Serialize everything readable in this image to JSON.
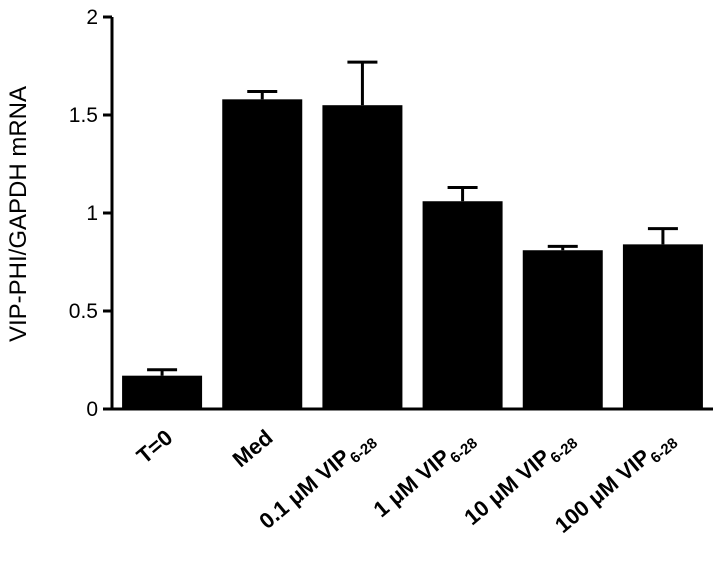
{
  "chart_data": {
    "type": "bar",
    "ylabel": "VIP-PHI/GAPDH mRNA",
    "ylim": [
      0,
      2
    ],
    "yticks": [
      {
        "value": 0,
        "label": "0"
      },
      {
        "value": 0.5,
        "label": "0.5"
      },
      {
        "value": 1,
        "label": "1"
      },
      {
        "value": 1.5,
        "label": "1.5"
      },
      {
        "value": 2,
        "label": "2"
      }
    ],
    "categories": [
      {
        "main": "T=0",
        "sub": ""
      },
      {
        "main": "Med",
        "sub": ""
      },
      {
        "main": "0.1 μM VIP",
        "sub": "6-28"
      },
      {
        "main": "1 μM VIP",
        "sub": "6-28"
      },
      {
        "main": "10 μM VIP",
        "sub": "6-28"
      },
      {
        "main": "100 μM VIP",
        "sub": "6-28"
      }
    ],
    "values": [
      0.17,
      1.58,
      1.55,
      1.06,
      0.81,
      0.84
    ],
    "errors": [
      0.03,
      0.04,
      0.22,
      0.07,
      0.02,
      0.08
    ],
    "bar_color": "#000000",
    "grid": false,
    "legend": "none"
  }
}
